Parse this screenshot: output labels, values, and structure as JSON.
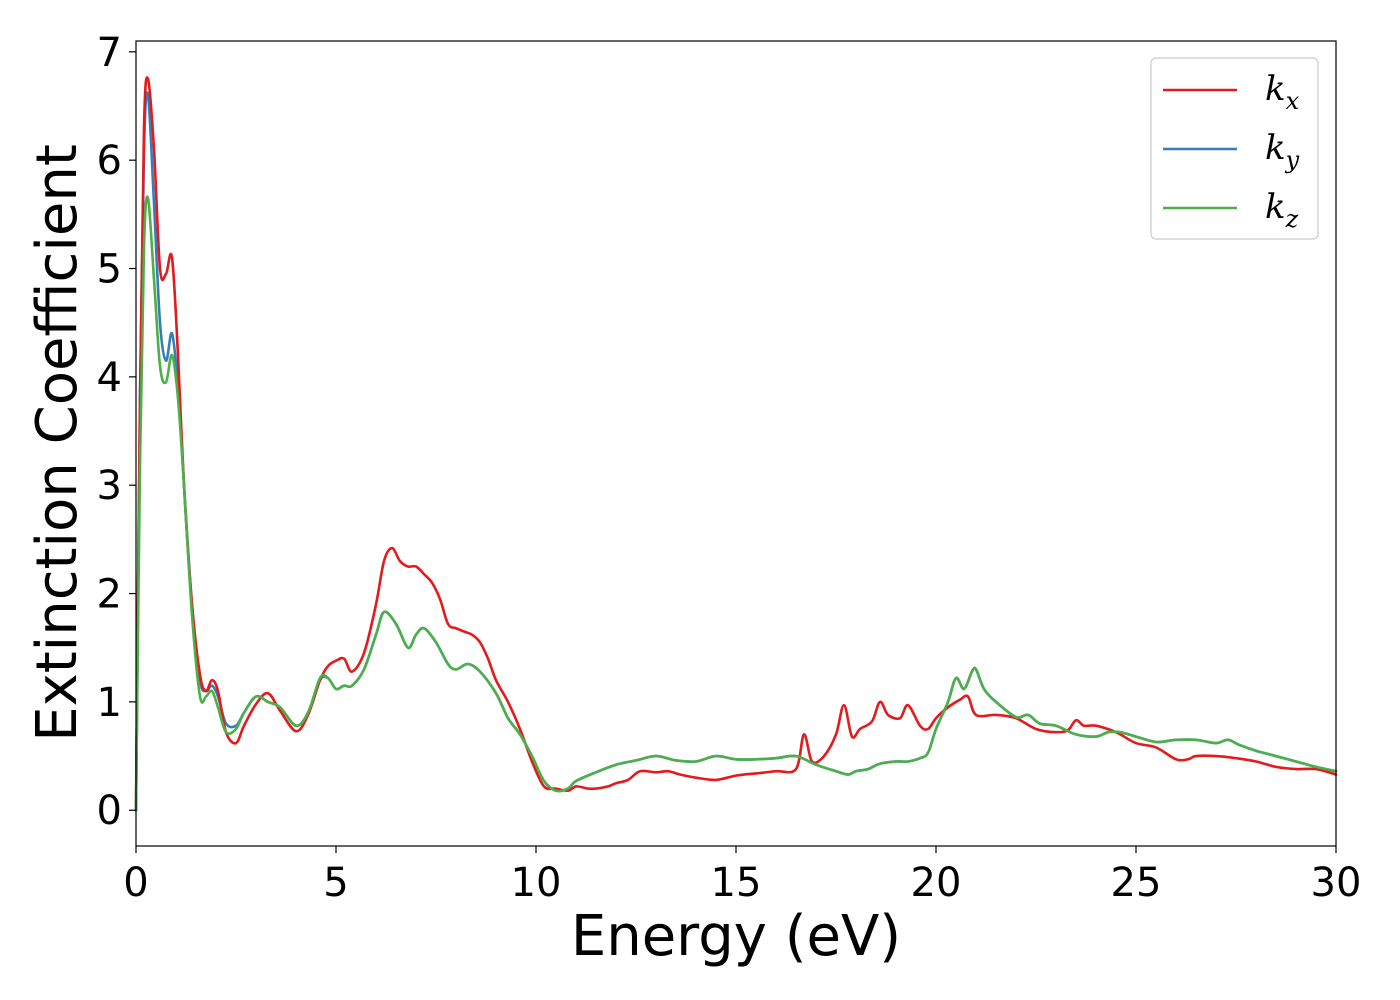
{
  "chart_data": {
    "type": "line",
    "title": "",
    "xlabel": "Energy (eV)",
    "ylabel": "Extinction Coefficient",
    "xlim": [
      0,
      30
    ],
    "ylim": [
      -0.33,
      7.1
    ],
    "xticks": [
      0,
      5,
      10,
      15,
      20,
      25,
      30
    ],
    "yticks": [
      0,
      1,
      2,
      3,
      4,
      5,
      6,
      7
    ],
    "grid": false,
    "legend_position": "top-right",
    "series": [
      {
        "name": "k_x",
        "legend_main": "k",
        "legend_sub": "x",
        "color": "#e41a1c",
        "x": [
          0,
          0.1,
          0.2,
          0.3,
          0.45,
          0.6,
          0.75,
          0.9,
          1.05,
          1.2,
          1.4,
          1.6,
          1.75,
          1.9,
          2.05,
          2.25,
          2.5,
          2.7,
          3.0,
          3.3,
          3.6,
          4.0,
          4.3,
          4.6,
          4.8,
          5.0,
          5.2,
          5.4,
          5.7,
          6.0,
          6.2,
          6.4,
          6.6,
          6.8,
          7.0,
          7.2,
          7.4,
          7.6,
          7.8,
          8.0,
          8.2,
          8.4,
          8.6,
          8.8,
          9.0,
          9.3,
          9.6,
          9.9,
          10.2,
          10.5,
          10.8,
          11.0,
          11.3,
          11.5,
          11.8,
          12.0,
          12.3,
          12.6,
          13.0,
          13.3,
          13.6,
          14.0,
          14.5,
          15.0,
          15.5,
          16.0,
          16.5,
          16.7,
          16.9,
          17.2,
          17.5,
          17.7,
          17.9,
          18.1,
          18.4,
          18.6,
          18.8,
          19.1,
          19.3,
          19.6,
          19.8,
          20.0,
          20.3,
          20.6,
          20.8,
          21.0,
          21.5,
          22.0,
          22.5,
          23.0,
          23.3,
          23.5,
          23.7,
          24.0,
          24.5,
          25.0,
          25.5,
          26.0,
          26.3,
          26.5,
          27.0,
          27.5,
          28.0,
          28.5,
          29.0,
          29.5,
          30.0
        ],
        "y": [
          0,
          3.8,
          6.3,
          6.75,
          6.1,
          5.0,
          4.95,
          5.1,
          4.2,
          3.0,
          1.9,
          1.25,
          1.1,
          1.2,
          1.1,
          0.72,
          0.62,
          0.78,
          0.98,
          1.08,
          0.92,
          0.73,
          0.88,
          1.2,
          1.33,
          1.38,
          1.4,
          1.28,
          1.45,
          1.9,
          2.3,
          2.42,
          2.3,
          2.25,
          2.25,
          2.18,
          2.1,
          1.95,
          1.72,
          1.68,
          1.65,
          1.62,
          1.55,
          1.4,
          1.2,
          1.0,
          0.75,
          0.45,
          0.22,
          0.2,
          0.18,
          0.22,
          0.2,
          0.2,
          0.22,
          0.25,
          0.28,
          0.36,
          0.35,
          0.36,
          0.33,
          0.3,
          0.28,
          0.32,
          0.34,
          0.36,
          0.38,
          0.7,
          0.45,
          0.5,
          0.7,
          0.97,
          0.68,
          0.75,
          0.82,
          1.0,
          0.88,
          0.85,
          0.97,
          0.78,
          0.75,
          0.85,
          0.95,
          1.02,
          1.05,
          0.88,
          0.88,
          0.85,
          0.75,
          0.72,
          0.74,
          0.83,
          0.78,
          0.78,
          0.72,
          0.62,
          0.58,
          0.47,
          0.47,
          0.5,
          0.5,
          0.48,
          0.45,
          0.4,
          0.38,
          0.38,
          0.33
        ]
      },
      {
        "name": "k_y",
        "legend_main": "k",
        "legend_sub": "y",
        "color": "#377eb8",
        "x": [
          0,
          0.1,
          0.2,
          0.3,
          0.45,
          0.6,
          0.75,
          0.9,
          1.05,
          1.2,
          1.4,
          1.6,
          1.75,
          1.9,
          2.05,
          2.25,
          2.5,
          2.7,
          3.0,
          3.3,
          3.6,
          4.0,
          4.3,
          4.6,
          4.8,
          5.0,
          5.2,
          5.4,
          5.7,
          6.0,
          6.2,
          6.5,
          6.8,
          7.0,
          7.2,
          7.5,
          7.8,
          8.0,
          8.3,
          8.6,
          9.0,
          9.3,
          9.6,
          9.9,
          10.2,
          10.5,
          10.8,
          11.0,
          11.5,
          12.0,
          12.5,
          13.0,
          13.5,
          14.0,
          14.5,
          15.0,
          15.5,
          16.0,
          16.5,
          17.0,
          17.5,
          17.8,
          18.0,
          18.3,
          18.6,
          19.0,
          19.3,
          19.6,
          19.8,
          20.0,
          20.3,
          20.5,
          20.7,
          20.9,
          21.0,
          21.2,
          21.5,
          22.0,
          22.3,
          22.6,
          23.0,
          23.5,
          24.0,
          24.3,
          24.6,
          25.0,
          25.5,
          26.0,
          26.5,
          27.0,
          27.3,
          27.6,
          28.0,
          28.5,
          29.0,
          29.5,
          30.0
        ],
        "y": [
          0,
          3.8,
          6.1,
          6.6,
          5.6,
          4.5,
          4.15,
          4.4,
          3.9,
          3.0,
          1.9,
          1.2,
          1.1,
          1.15,
          1.05,
          0.8,
          0.78,
          0.9,
          1.05,
          1.0,
          0.95,
          0.78,
          0.9,
          1.2,
          1.22,
          1.12,
          1.15,
          1.15,
          1.3,
          1.62,
          1.83,
          1.72,
          1.5,
          1.62,
          1.68,
          1.55,
          1.35,
          1.3,
          1.35,
          1.28,
          1.08,
          0.85,
          0.7,
          0.5,
          0.27,
          0.18,
          0.2,
          0.27,
          0.35,
          0.42,
          0.46,
          0.5,
          0.46,
          0.45,
          0.5,
          0.47,
          0.47,
          0.48,
          0.5,
          0.42,
          0.36,
          0.33,
          0.36,
          0.38,
          0.43,
          0.45,
          0.45,
          0.48,
          0.53,
          0.75,
          1.0,
          1.22,
          1.12,
          1.28,
          1.3,
          1.12,
          1.0,
          0.86,
          0.88,
          0.8,
          0.78,
          0.7,
          0.68,
          0.72,
          0.72,
          0.68,
          0.63,
          0.65,
          0.65,
          0.62,
          0.65,
          0.6,
          0.55,
          0.5,
          0.45,
          0.4,
          0.36
        ]
      },
      {
        "name": "k_z",
        "legend_main": "k",
        "legend_sub": "z",
        "color": "#4daf4a",
        "x": [
          0,
          0.1,
          0.2,
          0.3,
          0.45,
          0.6,
          0.75,
          0.9,
          1.05,
          1.2,
          1.4,
          1.6,
          1.75,
          1.9,
          2.05,
          2.25,
          2.5,
          2.7,
          3.0,
          3.3,
          3.6,
          4.0,
          4.3,
          4.6,
          4.8,
          5.0,
          5.2,
          5.4,
          5.7,
          6.0,
          6.2,
          6.5,
          6.8,
          7.0,
          7.2,
          7.5,
          7.8,
          8.0,
          8.3,
          8.6,
          9.0,
          9.3,
          9.6,
          9.9,
          10.2,
          10.5,
          10.8,
          11.0,
          11.5,
          12.0,
          12.5,
          13.0,
          13.5,
          14.0,
          14.5,
          15.0,
          15.5,
          16.0,
          16.5,
          17.0,
          17.5,
          17.8,
          18.0,
          18.3,
          18.6,
          19.0,
          19.3,
          19.6,
          19.8,
          20.0,
          20.3,
          20.5,
          20.7,
          20.9,
          21.0,
          21.2,
          21.5,
          22.0,
          22.3,
          22.6,
          23.0,
          23.5,
          24.0,
          24.3,
          24.6,
          25.0,
          25.5,
          26.0,
          26.5,
          27.0,
          27.3,
          27.6,
          28.0,
          28.5,
          29.0,
          29.5,
          30.0
        ],
        "y": [
          0,
          3.2,
          5.2,
          5.65,
          4.9,
          4.1,
          3.95,
          4.2,
          3.8,
          3.0,
          1.8,
          1.05,
          1.05,
          1.1,
          0.95,
          0.72,
          0.75,
          0.9,
          1.05,
          1.0,
          0.95,
          0.78,
          0.9,
          1.22,
          1.22,
          1.12,
          1.15,
          1.15,
          1.3,
          1.62,
          1.83,
          1.72,
          1.5,
          1.62,
          1.68,
          1.55,
          1.35,
          1.3,
          1.35,
          1.28,
          1.08,
          0.85,
          0.7,
          0.5,
          0.27,
          0.18,
          0.2,
          0.27,
          0.35,
          0.42,
          0.46,
          0.5,
          0.46,
          0.45,
          0.5,
          0.47,
          0.47,
          0.48,
          0.5,
          0.42,
          0.36,
          0.33,
          0.36,
          0.38,
          0.43,
          0.45,
          0.45,
          0.48,
          0.53,
          0.75,
          1.0,
          1.22,
          1.12,
          1.28,
          1.3,
          1.12,
          1.0,
          0.86,
          0.88,
          0.8,
          0.78,
          0.7,
          0.68,
          0.72,
          0.72,
          0.68,
          0.63,
          0.65,
          0.65,
          0.62,
          0.65,
          0.6,
          0.55,
          0.5,
          0.45,
          0.4,
          0.36
        ]
      }
    ]
  }
}
